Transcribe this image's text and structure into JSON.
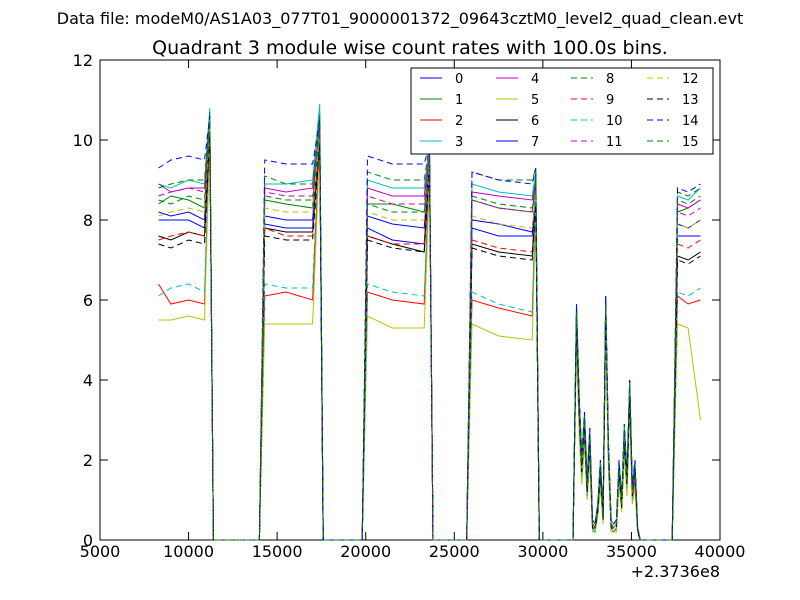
{
  "chart_data": {
    "type": "line",
    "suptitle": "Data file: modeM0/AS1A03_077T01_9000001372_09643cztM0_level2_quad_clean.evt",
    "title": "Quadrant 3 module wise count rates with 100.0s bins.",
    "xlabel": "",
    "ylabel": "",
    "x_offset_label": "+2.3736e8",
    "xlim": [
      5000,
      40000
    ],
    "ylim": [
      0,
      12
    ],
    "xticks": [
      5000,
      10000,
      15000,
      20000,
      25000,
      30000,
      35000,
      40000
    ],
    "xtick_labels": [
      "5000",
      "10000",
      "15000",
      "20000",
      "25000",
      "30000",
      "35000",
      "40000"
    ],
    "yticks": [
      0,
      2,
      4,
      6,
      8,
      10,
      12
    ],
    "ytick_labels": [
      "0",
      "2",
      "4",
      "6",
      "8",
      "10",
      "12"
    ],
    "grid": false,
    "legend_position": "top-right",
    "legend_columns": 4,
    "x": [
      8300,
      9000,
      10000,
      10900,
      11200,
      11400,
      14000,
      14300,
      15500,
      17000,
      17400,
      17600,
      19800,
      20100,
      21500,
      23300,
      23600,
      23800,
      25700,
      26000,
      27500,
      29400,
      29600,
      29800,
      31700,
      31900,
      32050,
      32200,
      32350,
      32500,
      32650,
      32800,
      32950,
      33100,
      33250,
      33400,
      33550,
      33700,
      33850,
      34000,
      34150,
      34300,
      34450,
      34600,
      34750,
      34900,
      35050,
      35200,
      35350,
      35500,
      37300,
      37600,
      38200,
      38900
    ],
    "series": [
      {
        "name": "0",
        "color": "#0000ff",
        "dash": "solid",
        "values": [
          8.0,
          8.0,
          8.0,
          7.8,
          10.5,
          0,
          0,
          7.9,
          7.8,
          7.8,
          10.3,
          0,
          0,
          7.8,
          7.5,
          7.4,
          9.5,
          0,
          0,
          7.8,
          7.6,
          7.6,
          8.6,
          0,
          0,
          5.6,
          3.3,
          1.8,
          3.0,
          1.3,
          2.5,
          0.4,
          0.3,
          0.8,
          1.8,
          0.6,
          5.9,
          2.3,
          0.4,
          0.3,
          0.4,
          1.8,
          0.9,
          2.6,
          1.5,
          3.8,
          1.2,
          1.8,
          0.3,
          0,
          0,
          7.6,
          7.6,
          7.6
        ]
      },
      {
        "name": "1",
        "color": "#008000",
        "dash": "solid",
        "values": [
          8.4,
          8.6,
          8.5,
          8.3,
          10.6,
          0,
          0,
          8.5,
          8.4,
          8.3,
          10.7,
          0,
          0,
          8.4,
          8.4,
          8.2,
          9.6,
          0,
          0,
          8.5,
          8.3,
          8.2,
          8.9,
          0,
          0,
          5.8,
          3.5,
          2.1,
          3.1,
          1.4,
          2.7,
          0.5,
          0.4,
          0.9,
          1.9,
          0.7,
          6.1,
          2.4,
          0.5,
          0.4,
          0.5,
          1.9,
          1.0,
          2.8,
          1.6,
          4.0,
          1.3,
          1.9,
          0.3,
          0,
          0,
          8.2,
          8.3,
          8.5
        ]
      },
      {
        "name": "2",
        "color": "#ff0000",
        "dash": "solid",
        "values": [
          6.4,
          5.9,
          6.0,
          5.9,
          10.4,
          0,
          0,
          6.1,
          6.2,
          6.0,
          10.1,
          0,
          0,
          6.2,
          6.0,
          5.9,
          9.3,
          0,
          0,
          6.0,
          5.8,
          5.6,
          8.5,
          0,
          0,
          5.3,
          2.8,
          1.6,
          2.6,
          1.1,
          2.2,
          0.3,
          0.2,
          0.7,
          1.5,
          0.5,
          5.5,
          2.0,
          0.3,
          0.2,
          0.3,
          1.6,
          0.8,
          2.3,
          1.3,
          3.5,
          1.0,
          1.5,
          0.2,
          0,
          0,
          6.1,
          5.9,
          6.0
        ]
      },
      {
        "name": "3",
        "color": "#00bfbf",
        "dash": "solid",
        "values": [
          8.9,
          8.8,
          9.0,
          8.9,
          10.8,
          0,
          0,
          8.9,
          8.9,
          9.0,
          10.9,
          0,
          0,
          9.0,
          8.8,
          8.8,
          9.9,
          0,
          0,
          8.9,
          8.7,
          8.6,
          9.2,
          0,
          0,
          5.9,
          3.6,
          2.0,
          3.2,
          1.5,
          2.8,
          0.5,
          0.4,
          0.9,
          2.0,
          0.7,
          6.1,
          2.5,
          0.5,
          0.4,
          0.5,
          2.0,
          1.1,
          2.9,
          1.7,
          4.0,
          1.4,
          2.0,
          0.3,
          0,
          0,
          8.6,
          8.5,
          8.8
        ]
      },
      {
        "name": "4",
        "color": "#bf00bf",
        "dash": "solid",
        "values": [
          8.9,
          8.7,
          8.8,
          8.8,
          10.5,
          0,
          0,
          8.8,
          8.7,
          8.8,
          10.4,
          0,
          0,
          8.8,
          8.6,
          8.6,
          9.7,
          0,
          0,
          8.7,
          8.6,
          8.5,
          9.0,
          0,
          0,
          5.7,
          3.4,
          1.9,
          3.0,
          1.4,
          2.6,
          0.4,
          0.3,
          0.8,
          1.8,
          0.6,
          5.9,
          2.3,
          0.4,
          0.3,
          0.4,
          1.8,
          0.9,
          2.7,
          1.5,
          3.9,
          1.2,
          1.8,
          0.3,
          0,
          0,
          8.4,
          8.3,
          8.5
        ]
      },
      {
        "name": "5",
        "color": "#bfbf00",
        "dash": "solid",
        "values": [
          5.5,
          5.5,
          5.6,
          5.5,
          10.0,
          0,
          0,
          5.4,
          5.4,
          5.4,
          9.8,
          0,
          0,
          5.6,
          5.3,
          5.3,
          9.0,
          0,
          0,
          5.4,
          5.1,
          5.0,
          8.2,
          0,
          0,
          5.0,
          2.6,
          1.4,
          2.4,
          1.0,
          2.0,
          0.2,
          0.2,
          0.6,
          1.3,
          0.4,
          5.3,
          1.8,
          0.2,
          0.2,
          0.2,
          1.4,
          0.7,
          2.1,
          1.1,
          3.3,
          0.9,
          1.3,
          0.2,
          0,
          0,
          5.4,
          5.3,
          3.0
        ]
      },
      {
        "name": "6",
        "color": "#000000",
        "dash": "solid",
        "values": [
          7.6,
          7.5,
          7.7,
          7.6,
          10.2,
          0,
          0,
          7.8,
          7.7,
          7.7,
          10.0,
          0,
          0,
          7.6,
          7.4,
          7.2,
          9.4,
          0,
          0,
          7.4,
          7.2,
          7.1,
          8.5,
          0,
          0,
          5.5,
          3.2,
          1.7,
          2.9,
          1.2,
          2.4,
          0.4,
          0.3,
          0.8,
          1.7,
          0.6,
          5.8,
          2.2,
          0.4,
          0.3,
          0.4,
          1.7,
          0.9,
          2.5,
          1.4,
          3.7,
          1.1,
          1.7,
          0.3,
          0,
          0,
          7.1,
          7.0,
          7.2
        ]
      },
      {
        "name": "7",
        "color": "#0000ff",
        "dash": "solid",
        "values": [
          8.2,
          8.1,
          8.2,
          8.0,
          10.4,
          0,
          0,
          8.1,
          8.0,
          8.0,
          10.2,
          0,
          0,
          8.1,
          7.9,
          7.8,
          9.5,
          0,
          0,
          8.0,
          7.9,
          7.7,
          8.7,
          0,
          0,
          5.6,
          3.3,
          1.8,
          3.0,
          1.3,
          2.5,
          0.4,
          0.3,
          0.8,
          1.8,
          0.6,
          5.9,
          2.3,
          0.4,
          0.3,
          0.4,
          1.8,
          0.9,
          2.6,
          1.5,
          3.8,
          1.2,
          1.8,
          0.3,
          0,
          0,
          7.9,
          7.8,
          8.0
        ]
      },
      {
        "name": "8",
        "color": "#008000",
        "dash": "dashed",
        "values": [
          8.8,
          8.9,
          9.0,
          9.0,
          10.7,
          0,
          0,
          9.1,
          8.9,
          8.9,
          10.6,
          0,
          0,
          9.2,
          9.0,
          9.0,
          9.9,
          0,
          0,
          9.2,
          9.0,
          9.0,
          9.3,
          0,
          0,
          5.8,
          3.5,
          2.0,
          3.1,
          1.4,
          2.7,
          0.5,
          0.4,
          0.9,
          1.9,
          0.7,
          6.0,
          2.4,
          0.5,
          0.4,
          0.5,
          1.9,
          1.0,
          2.8,
          1.6,
          4.0,
          1.3,
          1.9,
          0.3,
          0,
          0,
          8.7,
          8.6,
          8.8
        ]
      },
      {
        "name": "9",
        "color": "#ff0000",
        "dash": "dashed",
        "values": [
          7.5,
          7.6,
          7.7,
          7.6,
          10.3,
          0,
          0,
          7.8,
          7.6,
          7.6,
          10.1,
          0,
          0,
          7.6,
          7.4,
          7.4,
          9.4,
          0,
          0,
          7.5,
          7.3,
          7.2,
          8.6,
          0,
          0,
          5.5,
          3.2,
          1.7,
          2.9,
          1.2,
          2.4,
          0.4,
          0.3,
          0.8,
          1.7,
          0.6,
          5.8,
          2.2,
          0.4,
          0.3,
          0.4,
          1.7,
          0.9,
          2.5,
          1.4,
          3.7,
          1.1,
          1.7,
          0.3,
          0,
          0,
          7.4,
          7.3,
          7.5
        ]
      },
      {
        "name": "10",
        "color": "#00bfbf",
        "dash": "dashed",
        "values": [
          6.1,
          6.3,
          6.4,
          6.2,
          10.6,
          0,
          0,
          6.4,
          6.3,
          6.3,
          10.5,
          0,
          0,
          6.4,
          6.2,
          6.1,
          9.5,
          0,
          0,
          6.2,
          5.9,
          5.7,
          8.7,
          0,
          0,
          5.4,
          3.0,
          1.6,
          2.7,
          1.1,
          2.3,
          0.3,
          0.2,
          0.7,
          1.6,
          0.5,
          5.6,
          2.1,
          0.3,
          0.2,
          0.3,
          1.6,
          0.8,
          2.4,
          1.3,
          3.6,
          1.0,
          1.6,
          0.2,
          0,
          0,
          6.2,
          6.1,
          6.3
        ]
      },
      {
        "name": "11",
        "color": "#bf00bf",
        "dash": "dashed",
        "values": [
          8.6,
          8.7,
          8.8,
          8.7,
          10.4,
          0,
          0,
          8.7,
          8.6,
          8.6,
          10.3,
          0,
          0,
          8.6,
          8.4,
          8.4,
          9.6,
          0,
          0,
          8.5,
          8.3,
          8.2,
          8.9,
          0,
          0,
          5.6,
          3.4,
          1.9,
          3.0,
          1.3,
          2.6,
          0.4,
          0.3,
          0.8,
          1.8,
          0.6,
          5.9,
          2.3,
          0.4,
          0.3,
          0.4,
          1.8,
          0.9,
          2.6,
          1.5,
          3.8,
          1.2,
          1.8,
          0.3,
          0,
          0,
          8.2,
          8.1,
          8.3
        ]
      },
      {
        "name": "12",
        "color": "#bfbf00",
        "dash": "dashed",
        "values": [
          8.1,
          8.2,
          8.3,
          8.2,
          10.3,
          0,
          0,
          8.3,
          8.2,
          8.2,
          10.2,
          0,
          0,
          8.2,
          8.0,
          8.0,
          9.5,
          0,
          0,
          8.1,
          7.9,
          7.8,
          8.7,
          0,
          0,
          5.5,
          3.3,
          1.8,
          2.9,
          1.2,
          2.5,
          0.4,
          0.3,
          0.8,
          1.7,
          0.6,
          5.8,
          2.2,
          0.4,
          0.3,
          0.4,
          1.7,
          0.9,
          2.5,
          1.4,
          3.7,
          1.1,
          1.7,
          0.3,
          0,
          0,
          7.9,
          7.8,
          8.0
        ]
      },
      {
        "name": "13",
        "color": "#000000",
        "dash": "dashed",
        "values": [
          7.4,
          7.3,
          7.5,
          7.4,
          10.1,
          0,
          0,
          7.6,
          7.5,
          7.5,
          9.9,
          0,
          0,
          7.5,
          7.3,
          7.2,
          9.3,
          0,
          0,
          7.3,
          7.1,
          7.0,
          8.4,
          0,
          0,
          5.4,
          3.1,
          1.7,
          2.8,
          1.2,
          2.4,
          0.3,
          0.3,
          0.7,
          1.7,
          0.5,
          5.7,
          2.2,
          0.3,
          0.3,
          0.3,
          1.7,
          0.8,
          2.4,
          1.4,
          3.6,
          1.1,
          1.7,
          0.2,
          0,
          0,
          7.0,
          6.9,
          7.1
        ]
      },
      {
        "name": "14",
        "color": "#0000ff",
        "dash": "dashed",
        "values": [
          9.3,
          9.5,
          9.6,
          9.5,
          10.6,
          0,
          0,
          9.5,
          9.4,
          9.4,
          10.5,
          0,
          0,
          9.6,
          9.4,
          9.4,
          9.9,
          0,
          0,
          9.2,
          9.0,
          8.9,
          9.3,
          0,
          0,
          5.9,
          3.6,
          2.1,
          3.2,
          1.5,
          2.8,
          0.5,
          0.4,
          0.9,
          2.0,
          0.7,
          6.1,
          2.5,
          0.5,
          0.4,
          0.5,
          2.0,
          1.1,
          2.9,
          1.7,
          4.0,
          1.4,
          2.0,
          0.3,
          0,
          0,
          8.8,
          8.7,
          8.9
        ]
      },
      {
        "name": "15",
        "color": "#008000",
        "dash": "dashed",
        "values": [
          8.5,
          8.4,
          8.6,
          8.5,
          10.5,
          0,
          0,
          8.6,
          8.5,
          8.5,
          10.4,
          0,
          0,
          8.4,
          8.2,
          8.2,
          9.6,
          0,
          0,
          8.6,
          8.4,
          8.3,
          9.1,
          0,
          0,
          5.7,
          3.4,
          1.9,
          3.0,
          1.4,
          2.6,
          0.4,
          0.3,
          0.8,
          1.8,
          0.6,
          5.9,
          2.3,
          0.4,
          0.3,
          0.4,
          1.8,
          0.9,
          2.7,
          1.5,
          3.9,
          1.2,
          1.8,
          0.3,
          0,
          0,
          8.5,
          8.4,
          8.6
        ]
      }
    ]
  }
}
